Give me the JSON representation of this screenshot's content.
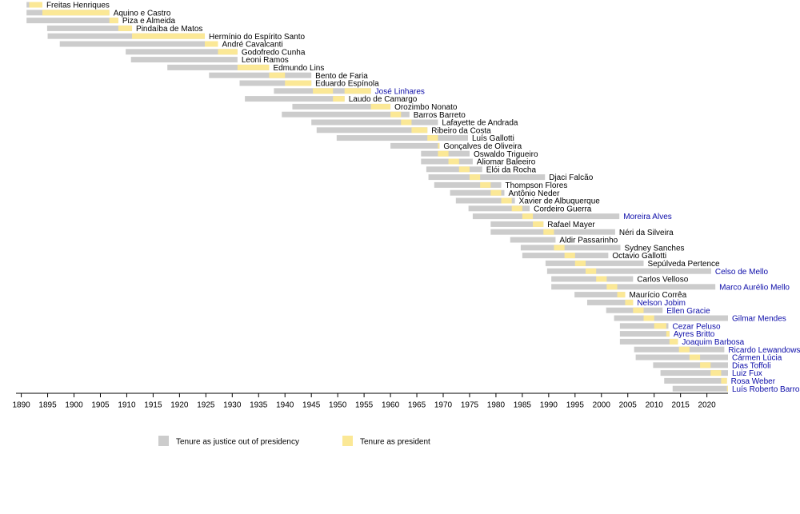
{
  "chart_data": {
    "type": "timeline",
    "xlim": [
      1889,
      2024
    ],
    "xticks": [
      1890,
      1895,
      1900,
      1905,
      1910,
      1915,
      1920,
      1925,
      1930,
      1935,
      1940,
      1945,
      1950,
      1955,
      1960,
      1965,
      1970,
      1975,
      1980,
      1985,
      1990,
      1995,
      2000,
      2005,
      2010,
      2015,
      2020
    ],
    "legend": [
      {
        "label": "Tenure as justice out of presidency",
        "color": "#cccccc"
      },
      {
        "label": "Tenure as president",
        "color": "#fbe896"
      }
    ],
    "rows": [
      {
        "name": "Freitas Henriques",
        "start": 1891,
        "end": 1894,
        "presidency": [
          [
            1891.5,
            1894
          ]
        ]
      },
      {
        "name": "Aquino e Castro",
        "start": 1891,
        "end": 1906.7,
        "presidency": [
          [
            1894,
            1906.7
          ]
        ]
      },
      {
        "name": "Piza e Almeida",
        "start": 1891,
        "end": 1908.4,
        "presidency": [
          [
            1906.7,
            1908.4
          ]
        ]
      },
      {
        "name": "Pindaíba de Matos",
        "start": 1894.9,
        "end": 1911,
        "presidency": [
          [
            1908.4,
            1911
          ]
        ]
      },
      {
        "name": "Hermínio do Espírito Santo",
        "start": 1895,
        "end": 1924.8,
        "presidency": [
          [
            1911,
            1924.8
          ]
        ]
      },
      {
        "name": "André Cavalcanti",
        "start": 1897.3,
        "end": 1927.3,
        "presidency": [
          [
            1924.8,
            1927.3
          ]
        ]
      },
      {
        "name": "Godofredo Cunha",
        "start": 1909.8,
        "end": 1931,
        "presidency": [
          [
            1927.3,
            1931
          ]
        ]
      },
      {
        "name": "Leoni Ramos",
        "start": 1910.8,
        "end": 1931,
        "presidency": []
      },
      {
        "name": "Edmundo Lins",
        "start": 1917.7,
        "end": 1937,
        "presidency": [
          [
            1931,
            1937
          ]
        ]
      },
      {
        "name": "Bento de Faria",
        "start": 1925.6,
        "end": 1945,
        "presidency": [
          [
            1937,
            1940
          ]
        ]
      },
      {
        "name": "Eduardo Espínola",
        "start": 1931.4,
        "end": 1945,
        "presidency": [
          [
            1940,
            1945
          ]
        ]
      },
      {
        "name": "José Linhares",
        "start": 1937.9,
        "end": 1956.3,
        "presidency": [
          [
            1945.3,
            1949.1
          ],
          [
            1951.3,
            1956.3
          ]
        ],
        "link": true
      },
      {
        "name": "Laudo de Camargo",
        "start": 1932.4,
        "end": 1951.3,
        "presidency": [
          [
            1949.1,
            1951.3
          ]
        ]
      },
      {
        "name": "Orozimbo Nonato",
        "start": 1941.4,
        "end": 1960,
        "presidency": [
          [
            1956.3,
            1960
          ]
        ]
      },
      {
        "name": "Barros Barreto",
        "start": 1939.4,
        "end": 1963.6,
        "presidency": [
          [
            1960,
            1962
          ]
        ]
      },
      {
        "name": "Lafayette de Andrada",
        "start": 1945,
        "end": 1969,
        "presidency": [
          [
            1962,
            1964
          ]
        ]
      },
      {
        "name": "Ribeiro da Costa",
        "start": 1946,
        "end": 1967,
        "presidency": [
          [
            1964,
            1967
          ]
        ]
      },
      {
        "name": "Luís Gallotti",
        "start": 1949.8,
        "end": 1974.7,
        "presidency": [
          [
            1967,
            1969
          ]
        ]
      },
      {
        "name": "Gonçalves de Oliveira",
        "start": 1960,
        "end": 1969.3,
        "presidency": [
          [
            1969,
            1969.3
          ]
        ]
      },
      {
        "name": "Oswaldo Trigueiro",
        "start": 1965.8,
        "end": 1975,
        "presidency": [
          [
            1969,
            1971
          ]
        ]
      },
      {
        "name": "Aliomar Baleeiro",
        "start": 1965.8,
        "end": 1975.6,
        "presidency": [
          [
            1971,
            1973
          ]
        ]
      },
      {
        "name": "Elói da Rocha",
        "start": 1966.8,
        "end": 1977.4,
        "presidency": [
          [
            1973,
            1975
          ]
        ]
      },
      {
        "name": "Djaci Falcão",
        "start": 1967.2,
        "end": 1989.3,
        "presidency": [
          [
            1975,
            1977
          ]
        ]
      },
      {
        "name": "Thompson Flores",
        "start": 1968.3,
        "end": 1981,
        "presidency": [
          [
            1977,
            1979
          ]
        ]
      },
      {
        "name": "Antônio Neder",
        "start": 1971.3,
        "end": 1981.6,
        "presidency": [
          [
            1979,
            1981
          ]
        ]
      },
      {
        "name": "Xavier de Albuquerque",
        "start": 1972.4,
        "end": 1983.6,
        "presidency": [
          [
            1981,
            1983
          ]
        ]
      },
      {
        "name": "Cordeiro Guerra",
        "start": 1974.8,
        "end": 1986.4,
        "presidency": [
          [
            1983,
            1985
          ]
        ]
      },
      {
        "name": "Moreira Alves",
        "start": 1975.6,
        "end": 2003.4,
        "presidency": [
          [
            1985,
            1987
          ]
        ],
        "link": true
      },
      {
        "name": "Rafael Mayer",
        "start": 1979,
        "end": 1989,
        "presidency": [
          [
            1987,
            1989
          ]
        ]
      },
      {
        "name": "Néri da Silveira",
        "start": 1979,
        "end": 2002.6,
        "presidency": [
          [
            1989,
            1991
          ]
        ]
      },
      {
        "name": "Aldir Passarinho",
        "start": 1982.7,
        "end": 1991.3,
        "presidency": []
      },
      {
        "name": "Sydney Sanches",
        "start": 1984.7,
        "end": 2003.6,
        "presidency": [
          [
            1991,
            1993
          ]
        ]
      },
      {
        "name": "Octavio Gallotti",
        "start": 1985,
        "end": 2001.3,
        "presidency": [
          [
            1993,
            1995
          ]
        ]
      },
      {
        "name": "Sepúlveda Pertence",
        "start": 1989.4,
        "end": 2008,
        "presidency": [
          [
            1995,
            1997
          ]
        ]
      },
      {
        "name": "Celso de Mello",
        "start": 1989.7,
        "end": 2020.8,
        "presidency": [
          [
            1997,
            1999
          ]
        ],
        "link": true
      },
      {
        "name": "Carlos Velloso",
        "start": 1990.5,
        "end": 2006,
        "presidency": [
          [
            1999,
            2001
          ]
        ]
      },
      {
        "name": "Marco Aurélio Mello",
        "start": 1990.5,
        "end": 2021.6,
        "presidency": [
          [
            2001,
            2003
          ]
        ],
        "link": true
      },
      {
        "name": "Maurício Corrêa",
        "start": 1994.9,
        "end": 2004.5,
        "presidency": [
          [
            2003,
            2004.5
          ]
        ]
      },
      {
        "name": "Nelson Jobim",
        "start": 1997.3,
        "end": 2006,
        "presidency": [
          [
            2004.5,
            2006
          ]
        ],
        "link": true
      },
      {
        "name": "Ellen Gracie",
        "start": 2000.9,
        "end": 2011.6,
        "presidency": [
          [
            2006,
            2008
          ]
        ],
        "link": true
      },
      {
        "name": "Gilmar Mendes",
        "start": 2002.4,
        "end": 2024,
        "presidency": [
          [
            2008,
            2010
          ]
        ],
        "link": true
      },
      {
        "name": "Cezar Peluso",
        "start": 2003.5,
        "end": 2012.7,
        "presidency": [
          [
            2010,
            2012.3
          ]
        ],
        "link": true
      },
      {
        "name": "Ayres Britto",
        "start": 2003.5,
        "end": 2012.9,
        "presidency": [
          [
            2012.3,
            2012.9
          ]
        ],
        "link": true
      },
      {
        "name": "Joaquim Barbosa",
        "start": 2003.5,
        "end": 2014.5,
        "presidency": [
          [
            2012.9,
            2014.5
          ]
        ],
        "link": true
      },
      {
        "name": "Ricardo Lewandowski",
        "start": 2006.2,
        "end": 2023.3,
        "presidency": [
          [
            2014.7,
            2016.7
          ]
        ],
        "link": true
      },
      {
        "name": "Cármen Lúcia",
        "start": 2006.5,
        "end": 2024,
        "presidency": [
          [
            2016.7,
            2018.7
          ]
        ],
        "link": true
      },
      {
        "name": "Dias Toffoli",
        "start": 2009.8,
        "end": 2024,
        "presidency": [
          [
            2018.7,
            2020.7
          ]
        ],
        "link": true
      },
      {
        "name": "Luiz Fux",
        "start": 2011.2,
        "end": 2024,
        "presidency": [
          [
            2020.7,
            2022.7
          ]
        ],
        "link": true
      },
      {
        "name": "Rosa Weber",
        "start": 2011.9,
        "end": 2023.8,
        "presidency": [
          [
            2022.7,
            2023.8
          ]
        ],
        "link": true
      },
      {
        "name": "Luís Roberto Barroso",
        "start": 2013.5,
        "end": 2024,
        "presidency": [
          [
            2023.8,
            2024
          ]
        ],
        "link": true
      }
    ]
  }
}
